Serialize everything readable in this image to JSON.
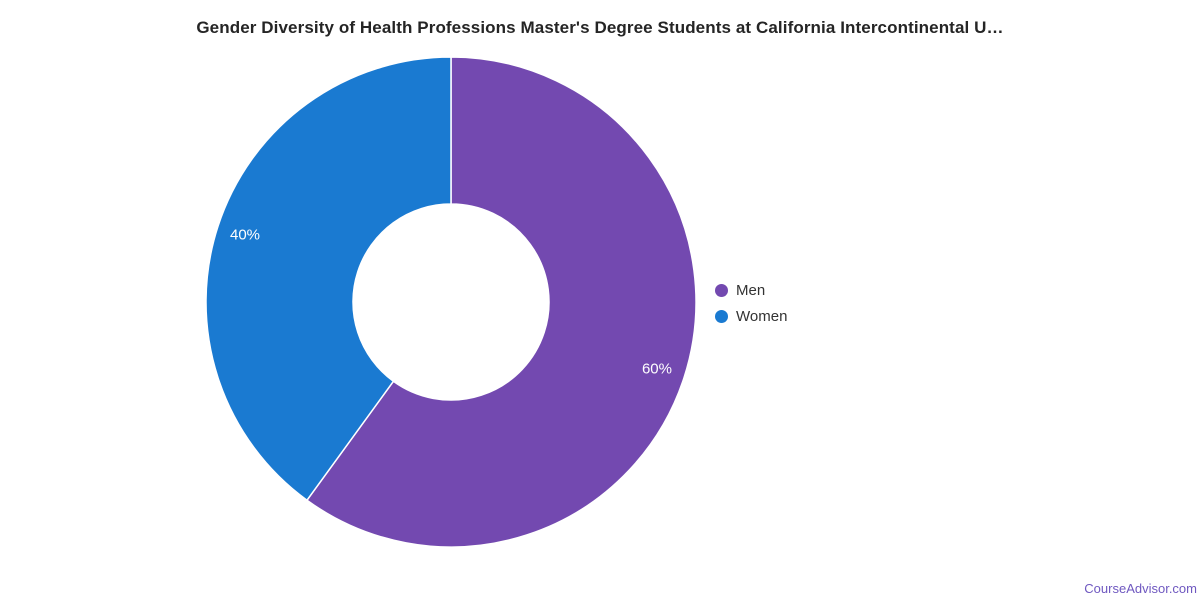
{
  "chart_data": {
    "type": "pie",
    "subtype": "donut",
    "title": "Gender Diversity of Health Professions Master's Degree Students at California Intercontinental U…",
    "categories": [
      "Men",
      "Women"
    ],
    "values": [
      60,
      40
    ],
    "data_labels": [
      "60%",
      "40%"
    ],
    "colors": [
      "#7349b0",
      "#1a7ad1"
    ],
    "start_angle_deg": 0,
    "direction": "clockwise",
    "inner_radius_ratio": 0.4,
    "legend_position": "right",
    "background": "#ffffff"
  },
  "legend": {
    "items": [
      {
        "label": "Men",
        "color": "#7349b0"
      },
      {
        "label": "Women",
        "color": "#1a7ad1"
      }
    ]
  },
  "footer": {
    "credit_text": "CourseAdvisor.com",
    "color": "#6f58c0"
  },
  "styles": {
    "title_color": "#252525",
    "legend_text_color": "#333333",
    "data_label_color": "#ffffff"
  }
}
